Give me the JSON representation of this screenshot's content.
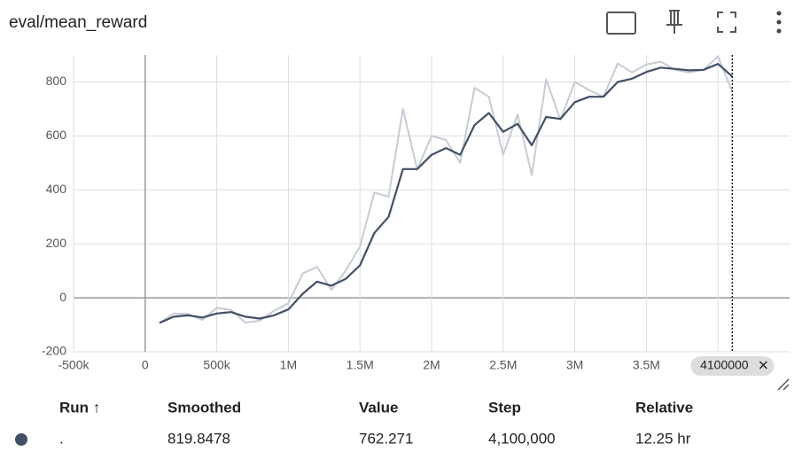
{
  "chart_data": {
    "type": "line",
    "title": "eval/mean_reward",
    "x": [
      100000,
      200000,
      300000,
      400000,
      500000,
      600000,
      700000,
      800000,
      900000,
      1000000,
      1100000,
      1200000,
      1300000,
      1400000,
      1500000,
      1600000,
      1700000,
      1800000,
      1900000,
      2000000,
      2100000,
      2200000,
      2300000,
      2400000,
      2500000,
      2600000,
      2700000,
      2800000,
      2900000,
      3000000,
      3100000,
      3200000,
      3300000,
      3400000,
      3500000,
      3600000,
      3700000,
      3800000,
      3900000,
      4000000,
      4100000
    ],
    "series": [
      {
        "color": "#c6cbd4",
        "values": [
          -93,
          -58,
          -60,
          -82,
          -37,
          -45,
          -92,
          -85,
          -48,
          -20,
          90,
          115,
          30,
          100,
          190,
          390,
          375,
          700,
          475,
          600,
          585,
          500,
          778,
          745,
          530,
          680,
          455,
          810,
          660,
          800,
          770,
          745,
          868,
          835,
          865,
          875,
          845,
          835,
          845,
          895,
          762.271
        ]
      },
      {
        "color": "#425066",
        "values": [
          -93,
          -70,
          -65,
          -73,
          -58,
          -53,
          -70,
          -77,
          -65,
          -43,
          15,
          60,
          45,
          70,
          120,
          240,
          300,
          477,
          477,
          530,
          555,
          530,
          640,
          685,
          615,
          645,
          565,
          670,
          663,
          725,
          745,
          745,
          800,
          812,
          837,
          853,
          848,
          843,
          845,
          867,
          819.8478
        ]
      }
    ],
    "xlim": [
      -500000,
      4500000
    ],
    "ylim": [
      -200,
      900
    ],
    "xticks": [
      {
        "value": -500000,
        "label": "-500k"
      },
      0,
      {
        "value": 500000,
        "label": "500k"
      },
      {
        "value": 1000000,
        "label": "1M"
      },
      {
        "value": 1500000,
        "label": "1.5M"
      },
      {
        "value": 2000000,
        "label": "2M"
      },
      {
        "value": 2500000,
        "label": "2.5M"
      },
      {
        "value": 3000000,
        "label": "3M"
      },
      {
        "value": 3500000,
        "label": "3.5M"
      },
      {
        "value": 4000000,
        "label": "4M"
      }
    ],
    "yticks": [
      -200,
      0,
      200,
      400,
      600,
      800
    ],
    "grid": true,
    "hover_step": 4100000
  },
  "table": {
    "columns": [
      "Run ↑",
      "Smoothed",
      "Value",
      "Step",
      "Relative"
    ],
    "rows": [
      [
        ".",
        "819.8478",
        "762.271",
        "4,100,000",
        "12.25 hr"
      ]
    ],
    "run_color": "#425066"
  }
}
